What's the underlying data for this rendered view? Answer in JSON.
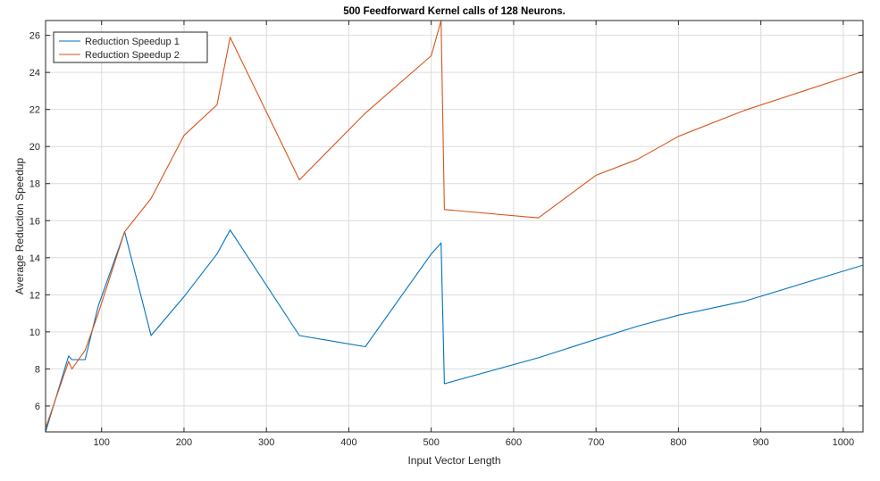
{
  "chart_data": {
    "type": "line",
    "title": "500 Feedforward Kernel calls of 128 Neurons.",
    "xlabel": "Input Vector Length",
    "ylabel": "Average Reduction Speedup",
    "xlim": [
      32,
      1024
    ],
    "ylim": [
      4.6,
      26.8
    ],
    "xticks": [
      100,
      200,
      300,
      400,
      500,
      600,
      700,
      800,
      900,
      1000
    ],
    "yticks": [
      6,
      8,
      10,
      12,
      14,
      16,
      18,
      20,
      22,
      24,
      26
    ],
    "grid": true,
    "legend_position": "top-left",
    "series": [
      {
        "name": "Reduction Speedup 1",
        "color": "#0072BD",
        "x": [
          32,
          60,
          64,
          80,
          96,
          128,
          160,
          200,
          240,
          256,
          340,
          420,
          500,
          512,
          516,
          630,
          700,
          750,
          800,
          880,
          1024
        ],
        "y": [
          4.6,
          8.7,
          8.5,
          8.5,
          11.4,
          15.4,
          9.8,
          11.9,
          14.2,
          15.5,
          9.8,
          9.2,
          14.2,
          14.8,
          7.2,
          8.6,
          9.6,
          10.3,
          10.9,
          11.65,
          13.6
        ]
      },
      {
        "name": "Reduction Speedup 2",
        "color": "#D95319",
        "x": [
          32,
          60,
          64,
          80,
          96,
          128,
          160,
          200,
          240,
          256,
          340,
          420,
          500,
          512,
          516,
          630,
          700,
          750,
          800,
          880,
          1024
        ],
        "y": [
          4.8,
          8.4,
          8.0,
          9.0,
          11.0,
          15.4,
          17.2,
          20.6,
          22.25,
          25.9,
          18.2,
          21.8,
          24.9,
          26.8,
          16.6,
          16.15,
          18.45,
          19.3,
          20.55,
          21.95,
          24.05
        ]
      }
    ]
  }
}
